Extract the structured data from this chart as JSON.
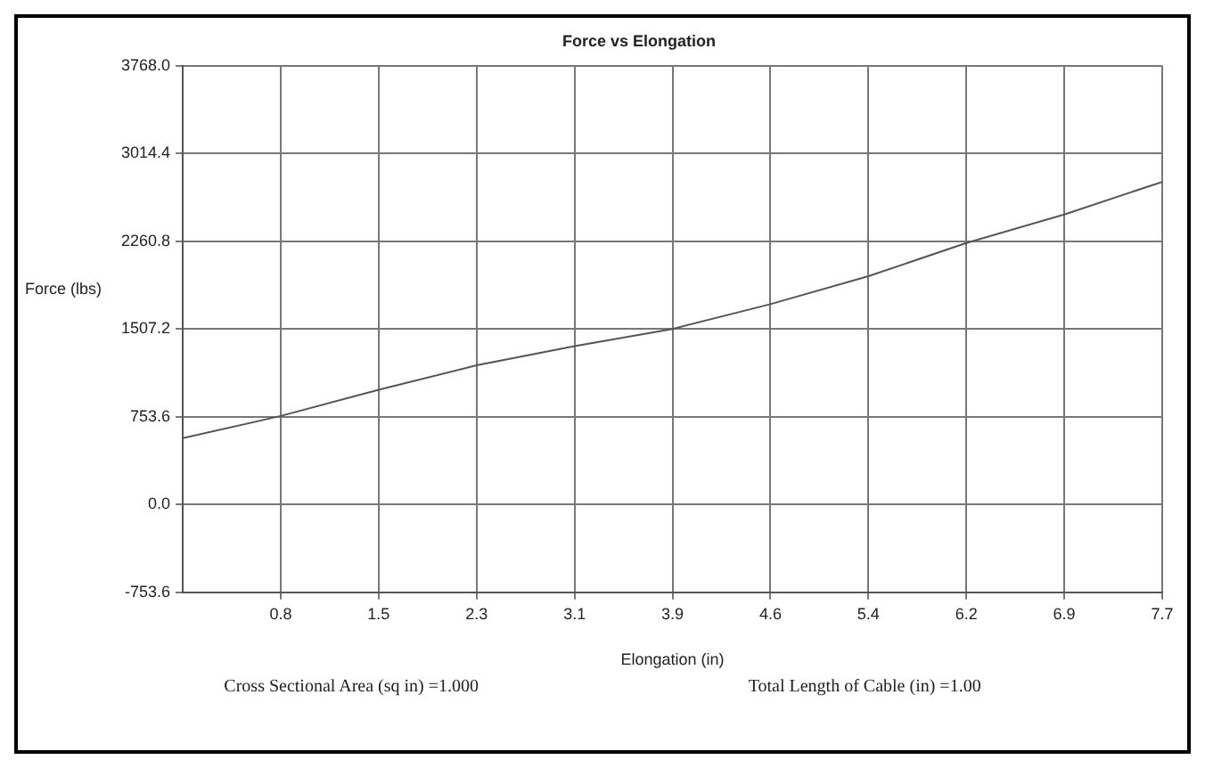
{
  "chart_data": {
    "type": "line",
    "title": "Force vs Elongation",
    "xlabel": "Elongation (in)",
    "ylabel": "Force (lbs)",
    "x": [
      0,
      0.77,
      1.54,
      2.31,
      3.08,
      3.85,
      4.62,
      5.39,
      6.16,
      6.93,
      7.7
    ],
    "series": [
      {
        "color": "#555555",
        "values": [
          570,
          760,
          985,
          1195,
          1360,
          1507,
          1720,
          1960,
          2245,
          2490,
          2770
        ]
      }
    ],
    "xlim": [
      0,
      7.7
    ],
    "xticks": [
      {
        "value": 0.77,
        "label": "0.8"
      },
      {
        "value": 1.54,
        "label": "1.5"
      },
      {
        "value": 2.31,
        "label": "2.3"
      },
      {
        "value": 3.08,
        "label": "3.1"
      },
      {
        "value": 3.85,
        "label": "3.9"
      },
      {
        "value": 4.62,
        "label": "4.6"
      },
      {
        "value": 5.39,
        "label": "5.4"
      },
      {
        "value": 6.16,
        "label": "6.2"
      },
      {
        "value": 6.93,
        "label": "6.9"
      },
      {
        "value": 7.7,
        "label": "7.7"
      }
    ],
    "ylim": [
      -753.6,
      3768.0
    ],
    "yticks": [
      {
        "value": -753.6,
        "label": "-753.6"
      },
      {
        "value": 0,
        "label": "0.0"
      },
      {
        "value": 753.6,
        "label": "753.6"
      },
      {
        "value": 1507.2,
        "label": "1507.2"
      },
      {
        "value": 2260.8,
        "label": "2260.8"
      },
      {
        "value": 3014.4,
        "label": "3014.4"
      },
      {
        "value": 3768.0,
        "label": "3768.0"
      }
    ],
    "grid": true,
    "legend": false,
    "marker": "none",
    "line_style": "solid",
    "annotations": [
      "Cross Sectional Area (sq in) =1.000",
      "Total Length of Cable (in) =1.00"
    ]
  }
}
